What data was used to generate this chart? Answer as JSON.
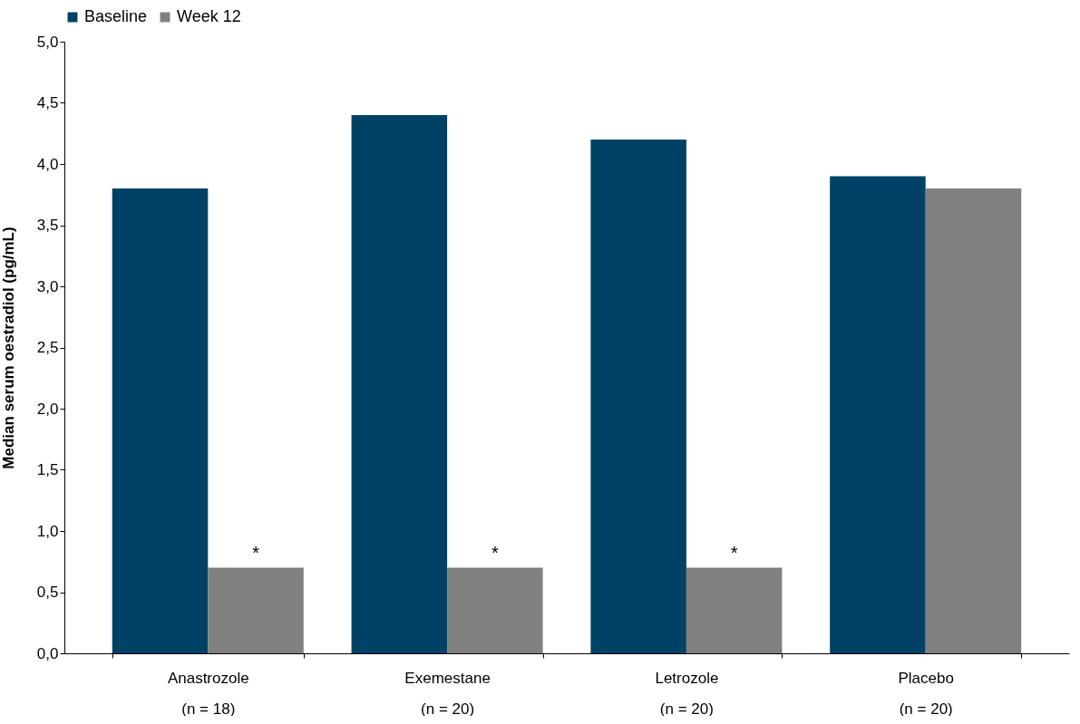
{
  "chart_data": {
    "type": "bar",
    "ylabel": "Median serum oestradiol (pg/mL)",
    "categories": [
      "Anastrozole\n(n = 18)",
      "Exemestane\n(n = 20)",
      "Letrozole\n(n = 20)",
      "Placebo\n(n = 20)"
    ],
    "series": [
      {
        "name": "Baseline",
        "color": "#004166",
        "values": [
          3.8,
          4.4,
          4.2,
          3.9
        ]
      },
      {
        "name": "Week 12",
        "color": "#808080",
        "values": [
          0.7,
          0.7,
          0.7,
          3.8
        ]
      }
    ],
    "ylim": [
      0,
      5
    ],
    "yticks": [
      {
        "value": 0,
        "label": "0,0"
      },
      {
        "value": 0.5,
        "label": "0,5"
      },
      {
        "value": 1,
        "label": "1,0"
      },
      {
        "value": 1.5,
        "label": "1,5"
      },
      {
        "value": 2,
        "label": "2,0"
      },
      {
        "value": 2.5,
        "label": "2,5"
      },
      {
        "value": 3,
        "label": "3,0"
      },
      {
        "value": 3.5,
        "label": "3,5"
      },
      {
        "value": 4,
        "label": "4,0"
      },
      {
        "value": 4.5,
        "label": "4,5"
      },
      {
        "value": 5,
        "label": "5,0"
      }
    ],
    "annotations": [
      {
        "text": "*",
        "x": "Anastrozole\n(n = 18)",
        "y": 0.7
      },
      {
        "text": "*",
        "x": "Exemestane\n(n = 20)",
        "y": 0.7
      },
      {
        "text": "*",
        "x": "Letrozole\n(n = 20)",
        "y": 0.7
      }
    ],
    "grid": false,
    "legend": "top"
  }
}
